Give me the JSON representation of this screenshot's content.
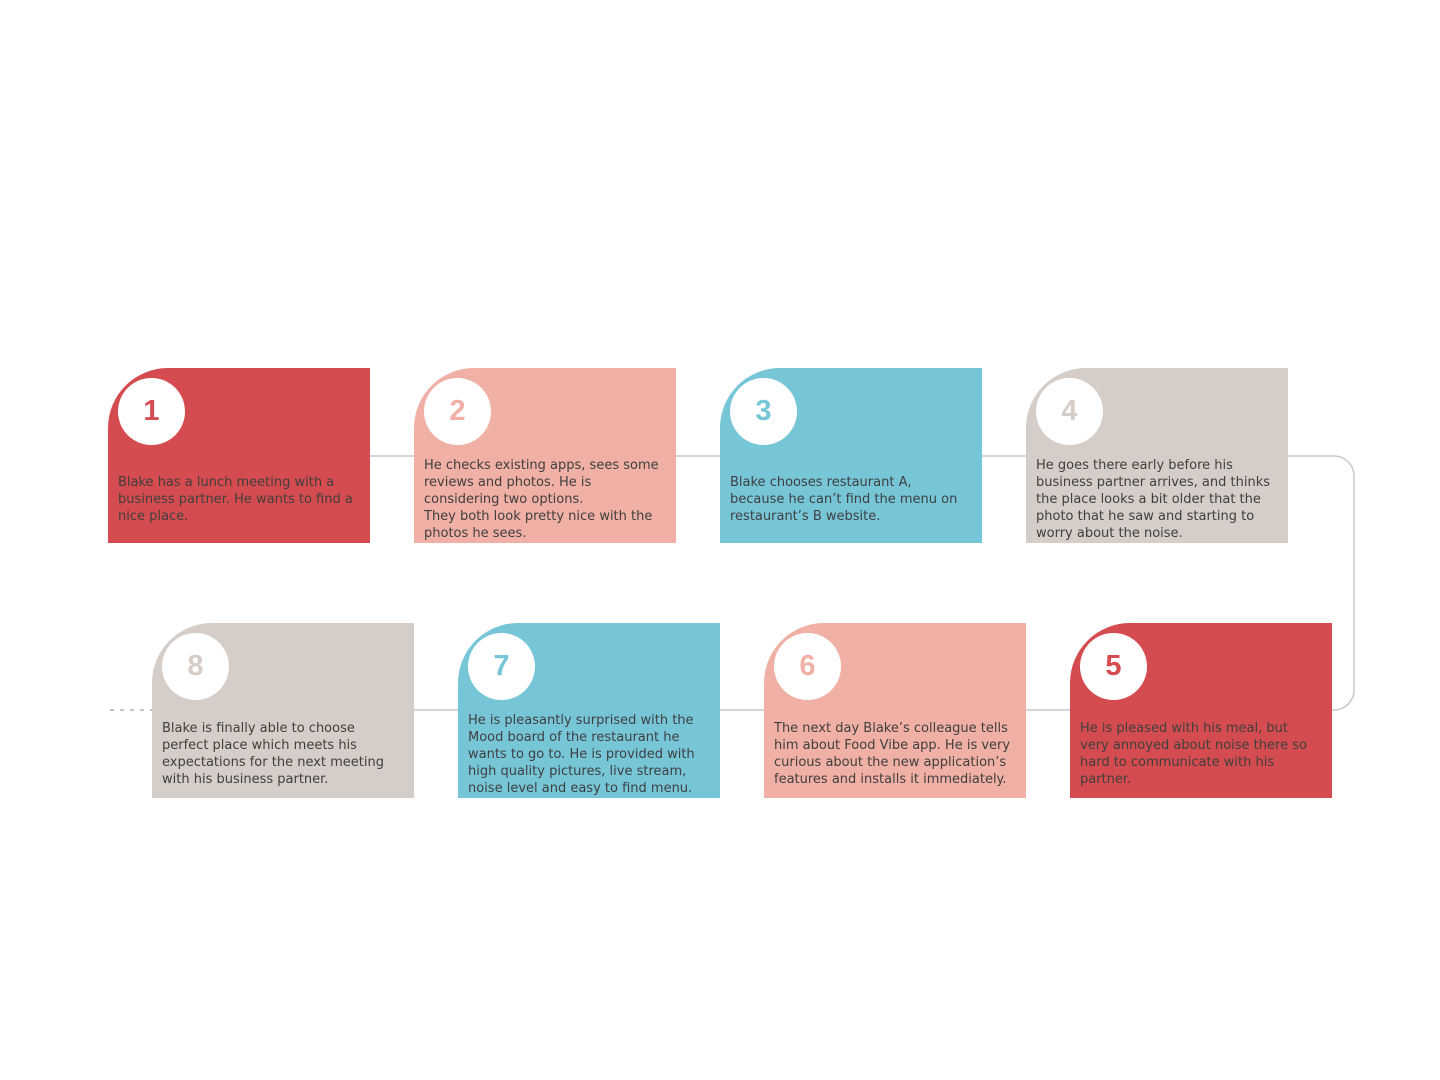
{
  "colors": {
    "red": "#d44c4f",
    "salmon": "#f0b0a6",
    "teal": "#76c6d8",
    "taupe": "#d5cdc8",
    "connector": "#c8c8c8",
    "text": "#3f3f3f"
  },
  "steps": [
    {
      "number": "1",
      "color": "red",
      "text": "Blake has a lunch meeting with a business partner. He wants to find a nice place."
    },
    {
      "number": "2",
      "color": "salmon",
      "text": "He checks existing apps, sees some reviews and photos. He is considering two options.\nThey both look pretty nice with the photos he sees."
    },
    {
      "number": "3",
      "color": "teal",
      "text": "Blake chooses restaurant A, because he can’t find the menu on restaurant’s B website."
    },
    {
      "number": "4",
      "color": "taupe",
      "text": "He goes there early before his business partner arrives, and thinks the place looks a bit older that the photo that he saw and starting to worry about the noise."
    },
    {
      "number": "5",
      "color": "red",
      "text": "He is pleased with his meal, but very annoyed about noise there so hard to communicate with his partner."
    },
    {
      "number": "6",
      "color": "salmon",
      "text": "The next day Blake’s colleague tells him about Food Vibe app. He is very curious about the new application’s features and installs it immediately."
    },
    {
      "number": "7",
      "color": "teal",
      "text": "He is pleasantly surprised with the Mood board of the restaurant he wants to go to. He is provided with high quality pictures, live stream, noise level and easy to find menu."
    },
    {
      "number": "8",
      "color": "taupe",
      "text": "Blake is finally able to choose perfect place which meets his expectations for the next meeting with his business partner."
    }
  ]
}
